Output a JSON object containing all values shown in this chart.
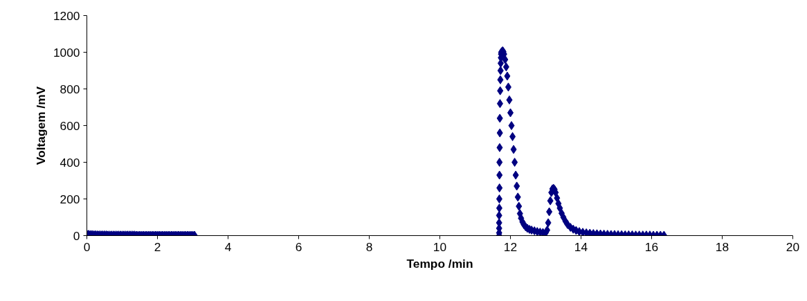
{
  "chart_data": {
    "type": "scatter",
    "xlabel": "Tempo /min",
    "ylabel": "Voltagem /mV",
    "xlim": [
      0,
      20
    ],
    "xticks": [
      0,
      2,
      4,
      6,
      8,
      10,
      12,
      14,
      16,
      18,
      20
    ],
    "ylim": [
      0,
      1200
    ],
    "yticks": [
      0,
      200,
      400,
      600,
      800,
      1000,
      1200
    ],
    "marker": "diamond",
    "series": [
      {
        "color": "#000080",
        "x": [
          0,
          0.05,
          0.1,
          0.15,
          0.2,
          0.25,
          0.3,
          0.35,
          0.4,
          0.45,
          0.5,
          0.55,
          0.6,
          0.65,
          0.7,
          0.75,
          0.8,
          0.85,
          0.9,
          0.95,
          1.0,
          1.05,
          1.1,
          1.15,
          1.2,
          1.25,
          1.3,
          1.35,
          1.4,
          1.45,
          1.5,
          1.55,
          1.6,
          1.65,
          1.7,
          1.75,
          1.8,
          1.85,
          1.9,
          1.95,
          2.0,
          2.05,
          2.1,
          2.15,
          2.2,
          2.25,
          2.3,
          2.35,
          2.4,
          2.45,
          2.5,
          2.55,
          2.6,
          2.65,
          2.7,
          2.75,
          2.8,
          2.85,
          2.9,
          2.95,
          3.0,
          3.05,
          11.68,
          11.68,
          11.68,
          11.68,
          11.68,
          11.685,
          11.685,
          11.69,
          11.69,
          11.69,
          11.695,
          11.7,
          11.7,
          11.705,
          11.71,
          11.715,
          11.72,
          11.725,
          11.73,
          11.735,
          11.74,
          11.76,
          11.78,
          11.8,
          11.82,
          11.85,
          11.88,
          11.91,
          11.94,
          11.97,
          12.0,
          12.03,
          12.06,
          12.09,
          12.12,
          12.15,
          12.18,
          12.21,
          12.24,
          12.27,
          12.3,
          12.34,
          12.38,
          12.43,
          12.48,
          12.54,
          12.6,
          12.68,
          12.76,
          12.84,
          12.92,
          13.0,
          13.04,
          13.07,
          13.1,
          13.13,
          13.16,
          13.19,
          13.22,
          13.25,
          13.28,
          13.32,
          13.36,
          13.4,
          13.45,
          13.5,
          13.56,
          13.62,
          13.7,
          13.78,
          13.86,
          13.95,
          14.05,
          14.15,
          14.25,
          14.35,
          14.45,
          14.55,
          14.65,
          14.75,
          14.85,
          14.95,
          15.05,
          15.15,
          15.25,
          15.35,
          15.45,
          15.55,
          15.65,
          15.75,
          15.85,
          15.95,
          16.05,
          16.15,
          16.25,
          16.35
        ],
        "values": [
          8,
          7,
          6,
          6,
          5,
          5,
          4,
          4,
          4,
          4,
          4,
          4,
          3,
          3,
          3,
          3,
          3,
          3,
          3,
          3,
          3,
          3,
          3,
          3,
          3,
          3,
          3,
          3,
          2,
          2,
          2,
          2,
          2,
          2,
          2,
          2,
          2,
          2,
          2,
          2,
          2,
          2,
          2,
          2,
          2,
          2,
          2,
          2,
          2,
          2,
          2,
          2,
          2,
          2,
          2,
          2,
          2,
          2,
          2,
          2,
          2,
          2,
          0,
          15,
          40,
          70,
          110,
          150,
          200,
          260,
          330,
          400,
          480,
          560,
          640,
          720,
          790,
          850,
          900,
          940,
          970,
          990,
          1000,
          1005,
          1008,
          1003,
          990,
          960,
          920,
          870,
          810,
          740,
          670,
          600,
          540,
          470,
          400,
          330,
          270,
          210,
          160,
          120,
          95,
          75,
          60,
          48,
          40,
          34,
          30,
          26,
          22,
          19,
          17,
          16,
          30,
          70,
          130,
          190,
          235,
          255,
          258,
          252,
          235,
          205,
          175,
          150,
          122,
          100,
          78,
          60,
          45,
          35,
          28,
          22,
          18,
          15,
          13,
          11,
          10,
          9,
          8,
          7,
          6,
          6,
          5,
          5,
          4,
          4,
          4,
          3,
          3,
          3,
          3,
          3,
          2,
          2,
          2,
          2
        ]
      }
    ]
  }
}
